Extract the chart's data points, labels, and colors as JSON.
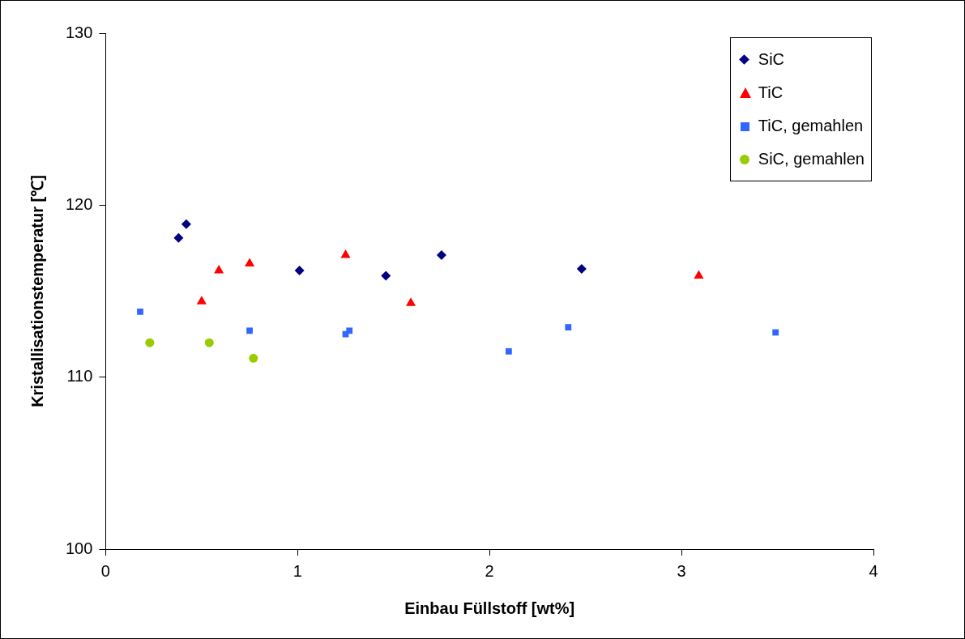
{
  "chart_data": {
    "type": "scatter",
    "xlabel": "Einbau Füllstoff [wt%]",
    "ylabel": "Kristallisationstemperatur [℃]",
    "xlim": [
      0,
      4
    ],
    "xticks": [
      0,
      1,
      2,
      3,
      4
    ],
    "ylim": [
      100,
      130
    ],
    "yticks": [
      100,
      110,
      120,
      130
    ],
    "grid": false,
    "legend": "top right",
    "series": [
      {
        "name": "SiC",
        "color": "#000080",
        "marker": "diamond",
        "x": [
          0.38,
          0.42,
          1.01,
          1.46,
          1.75,
          2.48
        ],
        "values": [
          118.1,
          118.9,
          116.2,
          115.9,
          117.1,
          116.3
        ]
      },
      {
        "name": "TiC",
        "color": "#ff0000",
        "marker": "triangle",
        "x": [
          0.5,
          0.59,
          0.75,
          1.25,
          1.59,
          3.09
        ],
        "values": [
          114.4,
          116.2,
          116.6,
          117.1,
          114.3,
          115.9
        ]
      },
      {
        "name": "TiC, gemahlen",
        "color": "#3366ff",
        "marker": "square",
        "x": [
          0.18,
          0.75,
          1.25,
          1.27,
          2.1,
          2.41,
          3.49
        ],
        "values": [
          113.8,
          112.7,
          112.5,
          112.7,
          111.5,
          112.9,
          112.6
        ]
      },
      {
        "name": "SiC, gemahlen",
        "color": "#99cc00",
        "marker": "circle",
        "x": [
          0.23,
          0.54,
          0.77
        ],
        "values": [
          112.0,
          112.0,
          111.1
        ]
      }
    ]
  }
}
